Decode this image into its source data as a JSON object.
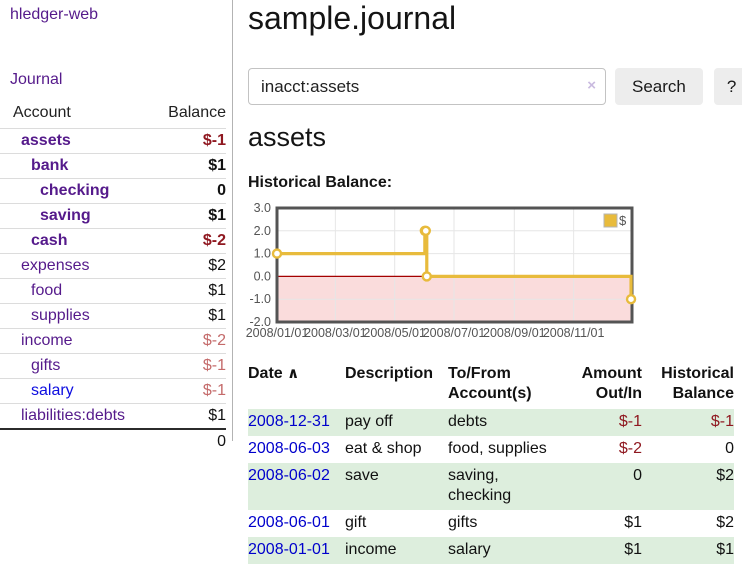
{
  "app": {
    "title": "hledger-web",
    "nav_journal": "Journal"
  },
  "sidebar": {
    "header": {
      "account": "Account",
      "balance": "Balance"
    },
    "accounts": [
      {
        "name": "assets",
        "balance": "$-1",
        "depth": 1,
        "bold": true,
        "unvisited": false
      },
      {
        "name": "bank",
        "balance": "$1",
        "depth": 2,
        "bold": true,
        "unvisited": false
      },
      {
        "name": "checking",
        "balance": "0",
        "depth": 3,
        "bold": true,
        "unvisited": false
      },
      {
        "name": "saving",
        "balance": "$1",
        "depth": 3,
        "bold": true,
        "unvisited": false
      },
      {
        "name": "cash",
        "balance": "$-2",
        "depth": 2,
        "bold": true,
        "unvisited": false
      },
      {
        "name": "expenses",
        "balance": "$2",
        "depth": 1,
        "bold": false,
        "unvisited": false
      },
      {
        "name": "food",
        "balance": "$1",
        "depth": 2,
        "bold": false,
        "unvisited": false
      },
      {
        "name": "supplies",
        "balance": "$1",
        "depth": 2,
        "bold": false,
        "unvisited": false
      },
      {
        "name": "income",
        "balance": "$-2",
        "depth": 1,
        "bold": false,
        "unvisited": false
      },
      {
        "name": "gifts",
        "balance": "$-1",
        "depth": 2,
        "bold": false,
        "unvisited": false
      },
      {
        "name": "salary",
        "balance": "$-1",
        "depth": 2,
        "bold": false,
        "unvisited": true
      },
      {
        "name": "liabilities:debts",
        "balance": "$1",
        "depth": 1,
        "bold": false,
        "unvisited": false
      }
    ],
    "total": "0"
  },
  "main": {
    "title": "sample.journal",
    "search": {
      "value": "inacct:assets",
      "clear_icon": "×",
      "button_label": "Search",
      "help_label": "?"
    },
    "account_heading": "assets",
    "chart_label": "Historical Balance:"
  },
  "chart_data": {
    "type": "line",
    "title": "Historical Balance:",
    "steps": true,
    "xlim_days": [
      0,
      365
    ],
    "ylim": [
      -2,
      3
    ],
    "yticks": [
      "3.0",
      "2.0",
      "1.0",
      "0.0",
      "-1.0",
      "-2.0"
    ],
    "ytick_values": [
      3,
      2,
      1,
      0,
      -1,
      -2
    ],
    "xticks": [
      {
        "day": 0,
        "label": "2008/01/01"
      },
      {
        "day": 60,
        "label": "2008/03/01"
      },
      {
        "day": 121,
        "label": "2008/05/01"
      },
      {
        "day": 182,
        "label": "2008/07/01"
      },
      {
        "day": 244,
        "label": "2008/09/01"
      },
      {
        "day": 305,
        "label": "2008/11/01"
      }
    ],
    "series": [
      {
        "name": "$",
        "color": "#e8bb3c",
        "points": [
          {
            "date": "2008-01-01",
            "day": 0,
            "value": 1
          },
          {
            "date": "2008-06-01",
            "day": 152,
            "value": 2
          },
          {
            "date": "2008-06-02",
            "day": 153,
            "value": 2
          },
          {
            "date": "2008-06-03",
            "day": 154,
            "value": 0
          },
          {
            "date": "2008-12-31",
            "day": 364,
            "value": -1
          }
        ]
      }
    ],
    "legend": {
      "label": "$",
      "position": "top-right"
    },
    "grid_color": "#e6e6e6",
    "border_color": "#545454",
    "axis_text_color": "#545454",
    "zero_line_color": "#a40000",
    "negative_region_fill": "#fadcdc"
  },
  "register": {
    "sort_icon": "∧",
    "headers": {
      "date": "Date",
      "description": "Description",
      "accounts": "To/From\nAccount(s)",
      "amount": "Amount\nOut/In",
      "balance": "Historical\nBalance"
    },
    "rows": [
      {
        "date": "2008-12-31",
        "description": "pay off",
        "accounts": "debts",
        "amount": "$-1",
        "balance": "$-1"
      },
      {
        "date": "2008-06-03",
        "description": "eat & shop",
        "accounts": "food, supplies",
        "amount": "$-2",
        "balance": "0"
      },
      {
        "date": "2008-06-02",
        "description": "save",
        "accounts": "saving,\nchecking",
        "amount": "0",
        "balance": "$2"
      },
      {
        "date": "2008-06-01",
        "description": "gift",
        "accounts": "gifts",
        "amount": "$1",
        "balance": "$2"
      },
      {
        "date": "2008-01-01",
        "description": "income",
        "accounts": "salary",
        "amount": "$1",
        "balance": "$1"
      }
    ]
  }
}
